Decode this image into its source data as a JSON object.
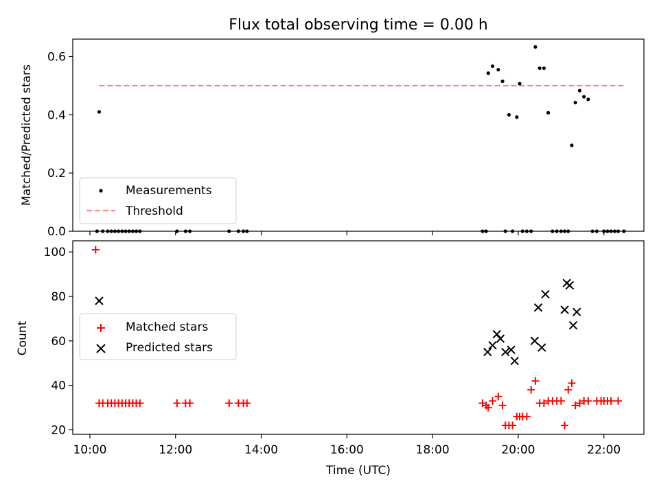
{
  "colors": {
    "measurement": "#000000",
    "threshold": "#ff7f7f",
    "matched": "#ff0000",
    "predicted": "#000000"
  },
  "chart_data": [
    {
      "type": "scatter",
      "title": "Flux total observing time = 0.00 h",
      "xlabel": "",
      "ylabel": "Matched/Predicted stars",
      "xlim": [
        "09:36",
        "22:56"
      ],
      "ylim": [
        0,
        0.66
      ],
      "yticks": [
        "0.0",
        "0.2",
        "0.4",
        "0.6"
      ],
      "grid": false,
      "legend_position": "lower left",
      "legend": [
        {
          "label": "Measurements"
        },
        {
          "label": "Threshold"
        }
      ],
      "series": [
        {
          "name": "Measurements",
          "style": "dot",
          "points": [
            [
              "10:10",
              0
            ],
            [
              "10:13",
              0.41
            ],
            [
              "10:18",
              0
            ],
            [
              "10:25",
              0
            ],
            [
              "10:30",
              0
            ],
            [
              "10:35",
              0
            ],
            [
              "10:40",
              0
            ],
            [
              "10:45",
              0
            ],
            [
              "10:50",
              0
            ],
            [
              "10:55",
              0
            ],
            [
              "11:00",
              0
            ],
            [
              "11:05",
              0
            ],
            [
              "11:10",
              0
            ],
            [
              "12:02",
              0
            ],
            [
              "12:14",
              0
            ],
            [
              "12:20",
              0
            ],
            [
              "13:15",
              0
            ],
            [
              "13:28",
              0
            ],
            [
              "13:35",
              0
            ],
            [
              "13:40",
              0
            ],
            [
              "19:10",
              0
            ],
            [
              "19:15",
              0
            ],
            [
              "19:18",
              0.543
            ],
            [
              "19:24",
              0.567
            ],
            [
              "19:32",
              0.555
            ],
            [
              "19:38",
              0.515
            ],
            [
              "19:42",
              0
            ],
            [
              "19:47",
              0.4
            ],
            [
              "19:52",
              0
            ],
            [
              "19:58",
              0.392
            ],
            [
              "20:02",
              0.507
            ],
            [
              "20:06",
              0
            ],
            [
              "20:12",
              0
            ],
            [
              "20:18",
              0
            ],
            [
              "20:24",
              0.633
            ],
            [
              "20:30",
              0.56
            ],
            [
              "20:36",
              0.56
            ],
            [
              "20:42",
              0.407
            ],
            [
              "20:48",
              0
            ],
            [
              "20:54",
              0
            ],
            [
              "21:00",
              0
            ],
            [
              "21:05",
              0
            ],
            [
              "21:10",
              0
            ],
            [
              "21:15",
              0.295
            ],
            [
              "21:20",
              0.442
            ],
            [
              "21:26",
              0.483
            ],
            [
              "21:32",
              0.462
            ],
            [
              "21:38",
              0.453
            ],
            [
              "21:44",
              0
            ],
            [
              "21:50",
              0
            ],
            [
              "22:00",
              0
            ],
            [
              "22:05",
              0
            ],
            [
              "22:10",
              0
            ],
            [
              "22:15",
              0
            ],
            [
              "22:20",
              0
            ],
            [
              "22:28",
              0
            ]
          ]
        },
        {
          "name": "Threshold",
          "style": "dashed-line",
          "points": [
            [
              "10:13",
              0.5
            ],
            [
              "22:28",
              0.5
            ]
          ]
        }
      ]
    },
    {
      "type": "scatter",
      "title": "",
      "xlabel": "Time (UTC)",
      "ylabel": "Count",
      "xlim": [
        "09:36",
        "22:56"
      ],
      "ylim": [
        18,
        105
      ],
      "xticks": [
        "10:00",
        "12:00",
        "14:00",
        "16:00",
        "18:00",
        "20:00",
        "22:00"
      ],
      "yticks": [
        "20",
        "40",
        "60",
        "80",
        "100"
      ],
      "grid": false,
      "legend_position": "center left",
      "legend": [
        {
          "label": "Matched stars"
        },
        {
          "label": "Predicted stars"
        }
      ],
      "series": [
        {
          "name": "Matched stars",
          "style": "plus",
          "points": [
            [
              "10:08",
              101
            ],
            [
              "10:13",
              32
            ],
            [
              "10:18",
              32
            ],
            [
              "10:25",
              32
            ],
            [
              "10:30",
              32
            ],
            [
              "10:35",
              32
            ],
            [
              "10:40",
              32
            ],
            [
              "10:45",
              32
            ],
            [
              "10:50",
              32
            ],
            [
              "10:55",
              32
            ],
            [
              "11:00",
              32
            ],
            [
              "11:05",
              32
            ],
            [
              "11:10",
              32
            ],
            [
              "12:02",
              32
            ],
            [
              "12:14",
              32
            ],
            [
              "12:20",
              32
            ],
            [
              "13:15",
              32
            ],
            [
              "13:28",
              32
            ],
            [
              "13:35",
              32
            ],
            [
              "13:40",
              32
            ],
            [
              "19:10",
              32
            ],
            [
              "19:15",
              31
            ],
            [
              "19:18",
              30
            ],
            [
              "19:24",
              33
            ],
            [
              "19:32",
              35
            ],
            [
              "19:38",
              31
            ],
            [
              "19:42",
              22
            ],
            [
              "19:47",
              22
            ],
            [
              "19:52",
              22
            ],
            [
              "19:58",
              26
            ],
            [
              "20:02",
              26
            ],
            [
              "20:06",
              26
            ],
            [
              "20:12",
              26
            ],
            [
              "20:18",
              38
            ],
            [
              "20:24",
              42
            ],
            [
              "20:30",
              32
            ],
            [
              "20:36",
              32
            ],
            [
              "20:42",
              33
            ],
            [
              "20:48",
              33
            ],
            [
              "20:54",
              33
            ],
            [
              "21:00",
              33
            ],
            [
              "21:05",
              22
            ],
            [
              "21:10",
              38
            ],
            [
              "21:15",
              41
            ],
            [
              "21:20",
              31
            ],
            [
              "21:26",
              32
            ],
            [
              "21:32",
              33
            ],
            [
              "21:38",
              33
            ],
            [
              "21:50",
              33
            ],
            [
              "21:56",
              33
            ],
            [
              "22:00",
              33
            ],
            [
              "22:05",
              33
            ],
            [
              "22:10",
              33
            ],
            [
              "22:20",
              33
            ]
          ]
        },
        {
          "name": "Predicted stars",
          "style": "x",
          "points": [
            [
              "10:13",
              78
            ],
            [
              "19:17",
              55
            ],
            [
              "19:24",
              58
            ],
            [
              "19:30",
              63
            ],
            [
              "19:35",
              61
            ],
            [
              "19:42",
              55
            ],
            [
              "19:50",
              56
            ],
            [
              "19:55",
              51
            ],
            [
              "20:23",
              60
            ],
            [
              "20:28",
              75
            ],
            [
              "20:33",
              57
            ],
            [
              "20:38",
              81
            ],
            [
              "21:05",
              74
            ],
            [
              "21:08",
              86
            ],
            [
              "21:12",
              85
            ],
            [
              "21:17",
              67
            ],
            [
              "21:22",
              73
            ]
          ]
        }
      ]
    }
  ]
}
